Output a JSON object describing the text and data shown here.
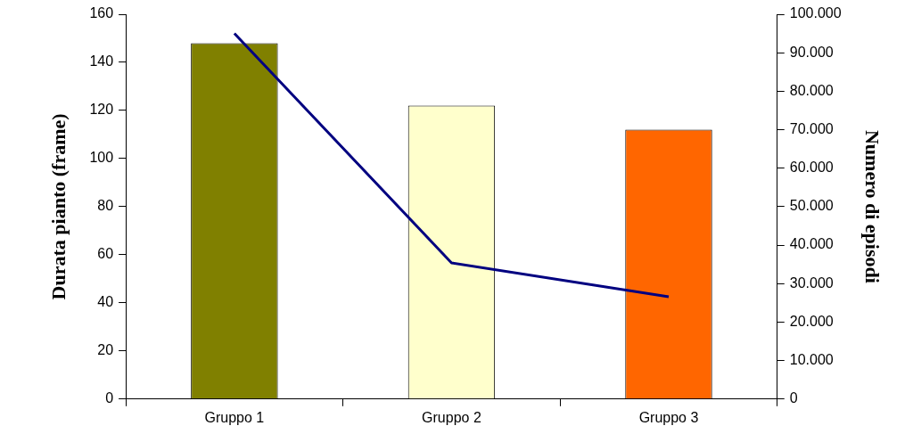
{
  "chart_data": {
    "type": "bar",
    "ylabel": "Durata pianto (frame)",
    "y2label": "Numero di episodi",
    "categories": [
      "Gruppo 1",
      "Gruppo 2",
      "Gruppo 3"
    ],
    "series": [
      {
        "colors": [
          "#808000",
          "#ffffcc",
          "#ff6600"
        ],
        "values": [
          148,
          122,
          112
        ]
      },
      {
        "type": "line",
        "axis": "y2",
        "color": "#000080",
        "values": [
          95000,
          35400,
          26600
        ]
      }
    ],
    "ylim": [
      0,
      160
    ],
    "yticks": [
      0,
      20,
      40,
      60,
      80,
      100,
      120,
      140,
      160
    ],
    "y2lim": [
      0,
      100000
    ],
    "y2ticks": [
      0,
      {
        "value": 10000,
        "label": "10.000"
      },
      {
        "value": 20000,
        "label": "20.000"
      },
      {
        "value": 30000,
        "label": "30.000"
      },
      {
        "value": 40000,
        "label": "40.000"
      },
      {
        "value": 50000,
        "label": "50.000"
      },
      {
        "value": 60000,
        "label": "60.000"
      },
      {
        "value": 70000,
        "label": "70.000"
      },
      {
        "value": 80000,
        "label": "80.000"
      },
      {
        "value": 90000,
        "label": "90.000"
      },
      {
        "value": 100000,
        "label": "100.000"
      }
    ],
    "grid": false,
    "legend": false,
    "marker": "none"
  }
}
